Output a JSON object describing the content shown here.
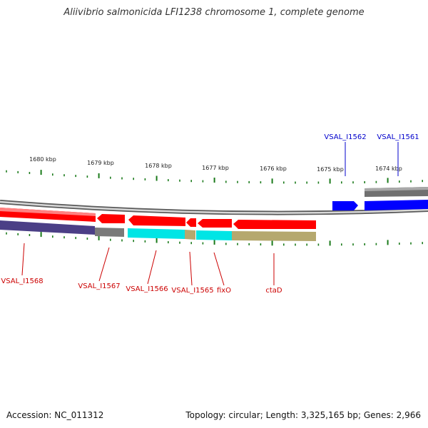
{
  "title": "Aliivibrio salmonicida LFI1238 chromosome 1, complete genome",
  "footer": {
    "accession": "Accession: NC_011312",
    "summary": "Topology: circular; Length: 3,325,165 bp; Genes: 2,966"
  },
  "colors": {
    "forward_gene": "#0000ff",
    "reverse_gene": "#ff0000",
    "forward_label": "#0000cc",
    "reverse_label": "#cc0000",
    "tick": "#1a7a1a",
    "backbone": "#888888"
  },
  "scale_labels": [
    "1680 kbp",
    "1679 kbp",
    "1678 kbp",
    "1677 kbp",
    "1676 kbp",
    "1675 kbp",
    "1674 kbp"
  ],
  "forward_genes": [
    {
      "label": "VSAL_I1562"
    },
    {
      "label": "VSAL_I1561"
    }
  ],
  "reverse_genes": [
    {
      "label": "VSAL_I1568"
    },
    {
      "label": "VSAL_I1567"
    },
    {
      "label": "VSAL_I1566"
    },
    {
      "label": "VSAL_I1565"
    },
    {
      "label": "fixO"
    },
    {
      "label": "ctaD"
    }
  ]
}
